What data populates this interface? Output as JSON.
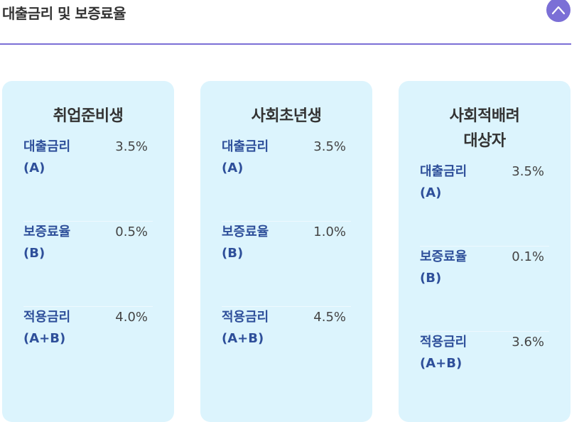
{
  "header": {
    "title": "대출금리 및 보증료율",
    "collapse_icon": "chevron-up-icon",
    "accent_color": "#7b6fd6"
  },
  "cards": [
    {
      "title_lines": [
        "취업준비생"
      ],
      "rows": [
        {
          "label_line1": "대출금리",
          "label_line2": "(A)",
          "value": "3.5%"
        },
        {
          "label_line1": "보증료율",
          "label_line2": "(B)",
          "value": "0.5%"
        },
        {
          "label_line1": "적용금리",
          "label_line2": "(A+B)",
          "value": "4.0%"
        }
      ]
    },
    {
      "title_lines": [
        "사회초년생"
      ],
      "rows": [
        {
          "label_line1": "대출금리",
          "label_line2": "(A)",
          "value": "3.5%"
        },
        {
          "label_line1": "보증료율",
          "label_line2": "(B)",
          "value": "1.0%"
        },
        {
          "label_line1": "적용금리",
          "label_line2": "(A+B)",
          "value": "4.5%"
        }
      ]
    },
    {
      "title_lines": [
        "사회적배려",
        "대상자"
      ],
      "rows": [
        {
          "label_line1": "대출금리",
          "label_line2": "(A)",
          "value": "3.5%"
        },
        {
          "label_line1": "보증료율",
          "label_line2": "(B)",
          "value": "0.1%"
        },
        {
          "label_line1": "적용금리",
          "label_line2": "(A+B)",
          "value": "3.6%"
        }
      ]
    }
  ],
  "colors": {
    "card_background": "#dcf4fd",
    "label_text": "#2e4f9a"
  }
}
